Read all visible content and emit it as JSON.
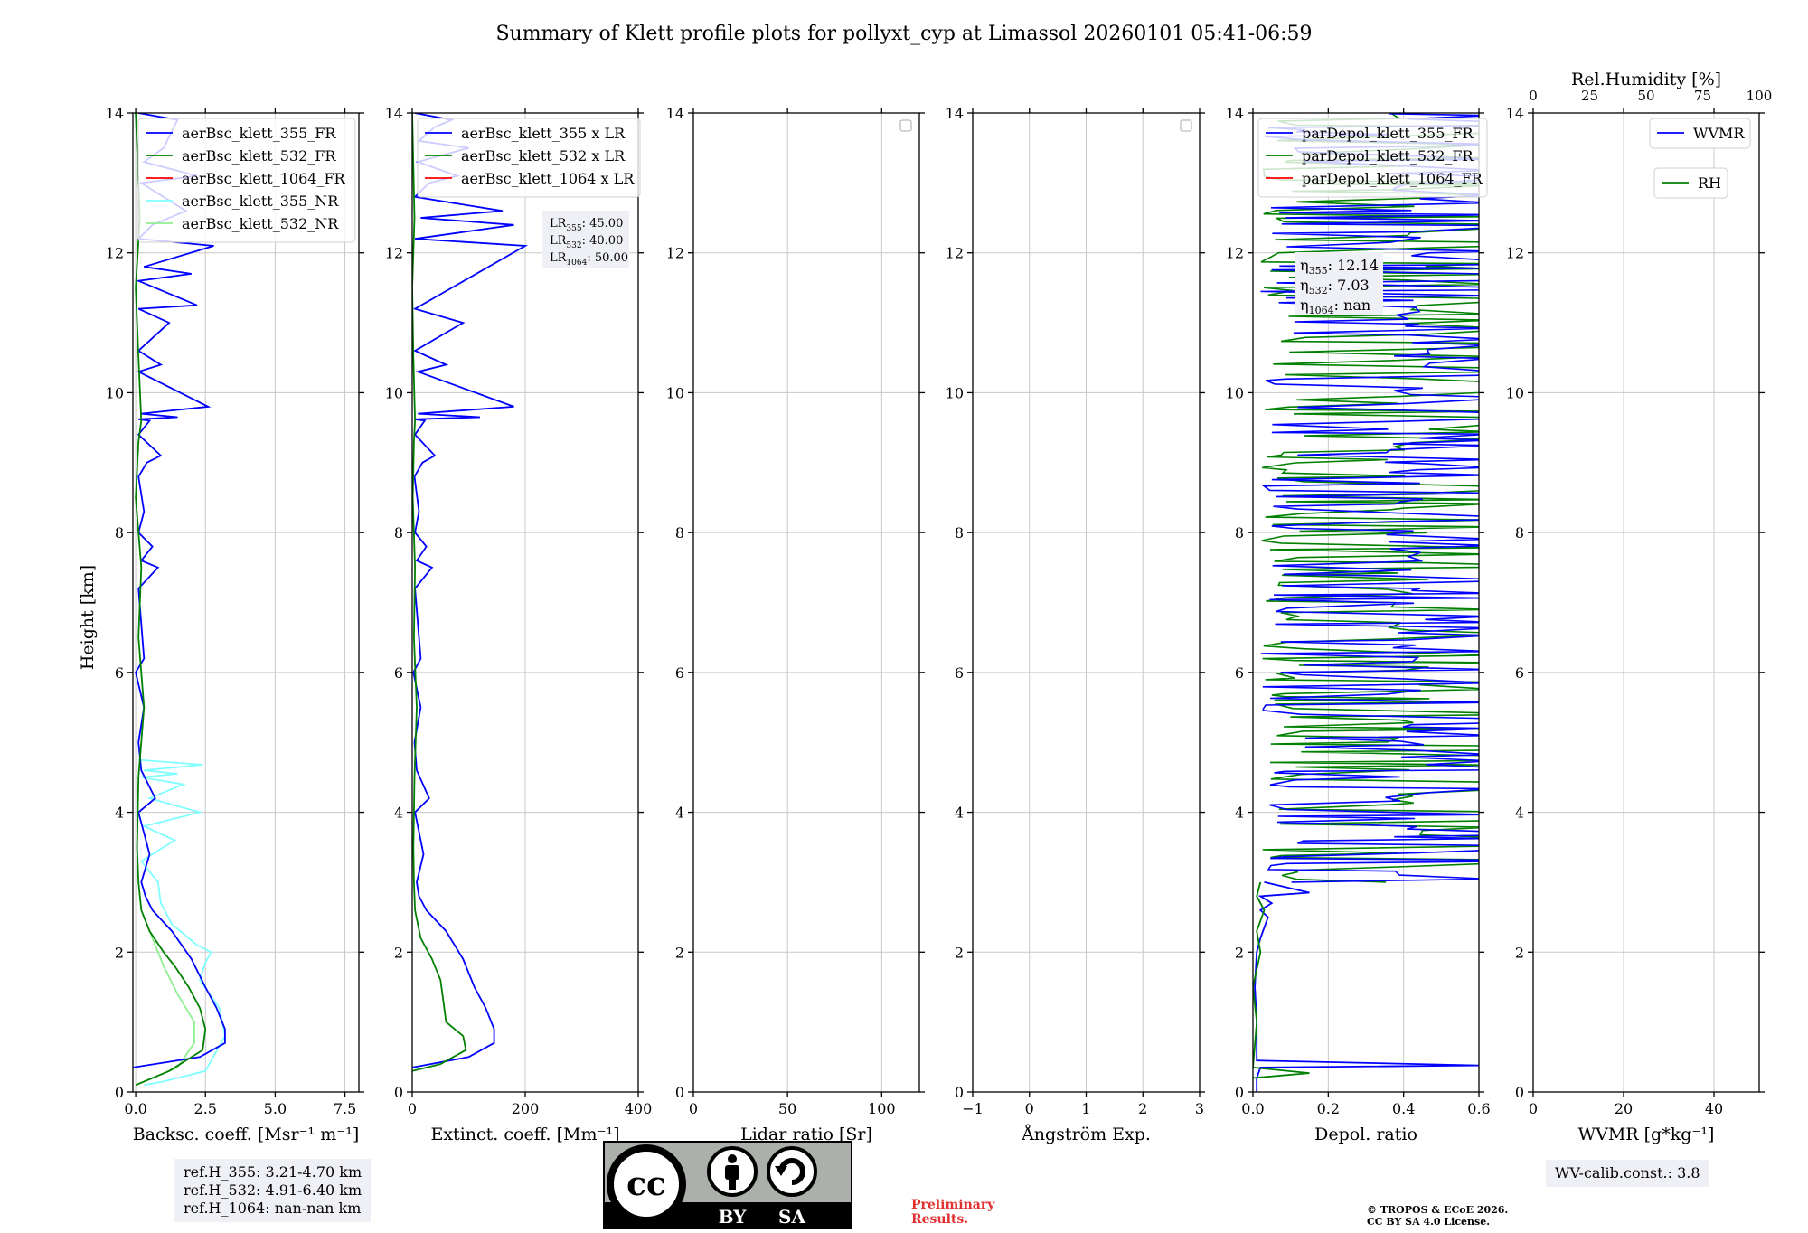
{
  "title": "Summary of Klett profile plots for pollyxt_cyp at Limassol 20260101 05:41-06:59",
  "colors": {
    "c355": "#0000ff",
    "c532": "#008000",
    "c1064": "#ff0000",
    "c355nr": "#80ffff",
    "c532nr": "#90ee90",
    "grid": "#c8c8c8",
    "legendbg": "#ffffff"
  },
  "ylabel": "Height [km]",
  "yticks": [
    "0",
    "2",
    "4",
    "6",
    "8",
    "10",
    "12",
    "14"
  ],
  "chart_data": [
    {
      "type": "line",
      "id": "backscatter",
      "xlabel": "Backsc. coeff. [Msr⁻¹ m⁻¹]",
      "xlim": [
        -0.1,
        8.0
      ],
      "ylim": [
        0,
        14
      ],
      "xticks": [
        {
          "v": 0,
          "label": "0.0"
        },
        {
          "v": 2.5,
          "label": "2.5"
        },
        {
          "v": 5.0,
          "label": "5.0"
        },
        {
          "v": 7.5,
          "label": "7.5"
        }
      ],
      "legend": [
        "aerBsc_klett_355_FR",
        "aerBsc_klett_532_FR",
        "aerBsc_klett_1064_FR",
        "aerBsc_klett_355_NR",
        "aerBsc_klett_532_NR"
      ],
      "series": [
        {
          "name": "aerBsc_klett_355_NR",
          "color": "c355nr",
          "x": [
            0.3,
            1.0,
            2.5,
            3.2,
            3.0,
            2.3,
            2.5,
            2.7,
            2.2,
            1.3,
            0.9,
            0.8,
            0.2,
            1.4,
            0.3,
            2.3,
            0.5,
            1.7,
            0.2,
            1.5,
            0.3,
            2.4,
            0.1
          ],
          "y": [
            0.1,
            0.15,
            0.3,
            0.8,
            1.2,
            1.6,
            1.85,
            2.0,
            2.1,
            2.4,
            2.7,
            3.0,
            3.3,
            3.6,
            3.8,
            4.0,
            4.2,
            4.4,
            4.5,
            4.55,
            4.6,
            4.68,
            4.75
          ]
        },
        {
          "name": "aerBsc_klett_532_NR",
          "color": "c532nr",
          "x": [
            0.0,
            1.5,
            2.1,
            2.1,
            1.5,
            1.0,
            0.6,
            0.3
          ],
          "y": [
            0.1,
            0.35,
            0.7,
            1.0,
            1.4,
            1.8,
            2.2,
            2.5
          ]
        },
        {
          "name": "aerBsc_klett_355_FR",
          "color": "c355",
          "x": [
            -0.1,
            2.3,
            3.2,
            3.2,
            2.9,
            2.5,
            2.0,
            1.3,
            0.6,
            0.35,
            0.2,
            0.5,
            0.1,
            0.7,
            0.2,
            0.1,
            0.3,
            0.0,
            0.3,
            0.1,
            0.8,
            0.2,
            0.6,
            0.1,
            0.3,
            0.1,
            0.4,
            0.9,
            0.1,
            0.5,
            0.1,
            1.5,
            0.2,
            2.6,
            0.1,
            0.9,
            0.1,
            1.2,
            0.1,
            2.2,
            0.1,
            2.0,
            0.3,
            2.8,
            0.1,
            0.6,
            1.8,
            0.2,
            2.2,
            0.3,
            1.0,
            1.5,
            0.1
          ],
          "y": [
            0.35,
            0.5,
            0.7,
            0.9,
            1.2,
            1.5,
            1.9,
            2.3,
            2.6,
            2.8,
            3.0,
            3.4,
            4.0,
            4.2,
            4.6,
            5.0,
            5.5,
            6.0,
            6.2,
            7.2,
            7.5,
            7.6,
            7.8,
            8.0,
            8.3,
            8.8,
            9.0,
            9.1,
            9.4,
            9.6,
            9.62,
            9.65,
            9.7,
            9.8,
            10.3,
            10.4,
            10.6,
            11.0,
            11.2,
            11.25,
            11.6,
            11.7,
            11.8,
            12.1,
            12.2,
            12.4,
            12.6,
            13.0,
            13.1,
            13.3,
            13.5,
            13.9,
            14.0
          ]
        },
        {
          "name": "aerBsc_klett_532_FR",
          "color": "c532",
          "x": [
            0.0,
            1.2,
            2.4,
            2.5,
            2.3,
            1.9,
            1.4,
            1.0,
            0.5,
            0.2,
            0.1,
            0.05,
            0.1,
            0.3,
            0.1,
            0.2,
            0.0,
            0.1,
            0.2,
            0.1,
            0.0,
            0.15,
            0.0
          ],
          "y": [
            0.1,
            0.3,
            0.6,
            0.9,
            1.2,
            1.5,
            1.8,
            2.0,
            2.3,
            2.6,
            3.0,
            3.5,
            4.5,
            5.5,
            6.5,
            7.5,
            8.5,
            9.3,
            9.6,
            10.5,
            11.5,
            12.5,
            14.0
          ]
        }
      ]
    },
    {
      "type": "line",
      "id": "extinction",
      "xlabel": "Extinct. coeff. [Mm⁻¹]",
      "xlim": [
        0,
        400
      ],
      "ylim": [
        0,
        14
      ],
      "xticks": [
        {
          "v": 0,
          "label": "0"
        },
        {
          "v": 200,
          "label": "200"
        },
        {
          "v": 400,
          "label": "400"
        }
      ],
      "legend": [
        "aerBsc_klett_355 x LR",
        "aerBsc_klett_532 x LR",
        "aerBsc_klett_1064 x LR"
      ],
      "annotations": [
        {
          "label": "LR",
          "sub": "355",
          "value": ": 45.00"
        },
        {
          "label": "LR",
          "sub": "532",
          "value": ": 40.00"
        },
        {
          "label": "LR",
          "sub": "1064",
          "value": ": 50.00"
        }
      ],
      "series": [
        {
          "name": "aerBsc_klett_355 x LR",
          "color": "c355",
          "x": [
            0,
            100,
            145,
            145,
            130,
            110,
            90,
            60,
            25,
            12,
            8,
            20,
            5,
            30,
            8,
            4,
            15,
            2,
            15,
            5,
            35,
            8,
            25,
            5,
            12,
            4,
            18,
            40,
            5,
            22,
            5,
            120,
            10,
            180,
            10,
            60,
            5,
            90,
            5,
            200,
            5,
            180,
            15,
            160,
            5,
            30,
            80,
            10,
            100,
            12,
            40,
            70,
            5
          ],
          "y": [
            0.35,
            0.5,
            0.7,
            0.9,
            1.2,
            1.5,
            1.9,
            2.3,
            2.6,
            2.8,
            3.0,
            3.4,
            4.0,
            4.2,
            4.6,
            5.0,
            5.5,
            6.0,
            6.2,
            7.2,
            7.5,
            7.6,
            7.8,
            8.0,
            8.3,
            8.8,
            9.0,
            9.1,
            9.4,
            9.6,
            9.62,
            9.65,
            9.7,
            9.8,
            10.3,
            10.4,
            10.6,
            11.0,
            11.2,
            12.1,
            12.2,
            12.4,
            12.5,
            12.6,
            12.8,
            13.0,
            13.1,
            13.3,
            13.5,
            13.6,
            13.8,
            13.9,
            14.0
          ]
        },
        {
          "name": "aerBsc_klett_532 x LR",
          "color": "c532",
          "x": [
            0,
            50,
            95,
            90,
            60,
            55,
            50,
            35,
            15,
            5,
            3,
            2,
            4,
            8,
            3,
            5,
            1,
            3,
            5,
            2,
            0,
            4,
            0
          ],
          "y": [
            0.3,
            0.4,
            0.6,
            0.8,
            1.0,
            1.3,
            1.6,
            1.9,
            2.2,
            2.6,
            3.0,
            3.5,
            4.5,
            5.5,
            6.5,
            7.5,
            8.5,
            9.3,
            9.6,
            10.5,
            11.5,
            12.5,
            14.0
          ]
        }
      ]
    },
    {
      "type": "line",
      "id": "lidar-ratio",
      "xlabel": "Lidar ratio [Sr]",
      "xlim": [
        0,
        120
      ],
      "ylim": [
        0,
        14
      ],
      "xticks": [
        {
          "v": 0,
          "label": "0"
        },
        {
          "v": 50,
          "label": "50"
        },
        {
          "v": 100,
          "label": "100"
        }
      ],
      "series": []
    },
    {
      "type": "line",
      "id": "angstrom",
      "xlabel": "Ångström Exp.",
      "xlim": [
        -1,
        3
      ],
      "ylim": [
        0,
        14
      ],
      "xticks": [
        {
          "v": -1,
          "label": "−1"
        },
        {
          "v": 0,
          "label": "0"
        },
        {
          "v": 1,
          "label": "1"
        },
        {
          "v": 2,
          "label": "2"
        },
        {
          "v": 3,
          "label": "3"
        }
      ],
      "series": []
    },
    {
      "type": "line",
      "id": "depol",
      "xlabel": "Depol. ratio",
      "xlim": [
        0,
        0.6
      ],
      "ylim": [
        0,
        14
      ],
      "xticks": [
        {
          "v": 0,
          "label": "0.0"
        },
        {
          "v": 0.2,
          "label": "0.2"
        },
        {
          "v": 0.4,
          "label": "0.4"
        },
        {
          "v": 0.6,
          "label": "0.6"
        }
      ],
      "legend": [
        "parDepol_klett_355_FR",
        "parDepol_klett_532_FR",
        "parDepol_klett_1064_FR"
      ],
      "annotations": [
        {
          "label": "η",
          "sub": "355",
          "value": ": 12.14"
        },
        {
          "label": "η",
          "sub": "532",
          "value": ": 7.03"
        },
        {
          "label": "η",
          "sub": "1064",
          "value": ": nan"
        }
      ],
      "noise_from_km": 3.0,
      "series": [
        {
          "name": "parDepol_klett_355_FR",
          "color": "c355",
          "x": [
            0.01,
            0.01,
            0.02,
            0.6,
            0.01,
            0.01,
            0.005,
            0.01,
            0.02,
            0.04,
            0.02,
            0.05,
            0.02,
            0.15,
            0.03
          ],
          "y": [
            0.0,
            0.2,
            0.35,
            0.38,
            0.45,
            1.0,
            1.5,
            2.0,
            2.2,
            2.5,
            2.6,
            2.7,
            2.8,
            2.85,
            3.0
          ]
        },
        {
          "name": "parDepol_klett_532_FR",
          "color": "c532",
          "x": [
            0.0,
            0.15,
            0.0,
            0.01,
            0.0,
            0.02,
            0.01,
            0.03,
            0.01,
            0.02
          ],
          "y": [
            0.2,
            0.27,
            0.35,
            1.0,
            1.5,
            2.0,
            2.3,
            2.6,
            2.8,
            3.0
          ]
        }
      ]
    },
    {
      "type": "line",
      "id": "wvmr",
      "xlabel": "WVMR [g*kg⁻¹]",
      "xlim": [
        0,
        50
      ],
      "ylim": [
        0,
        14
      ],
      "xticks": [
        {
          "v": 0,
          "label": "0"
        },
        {
          "v": 20,
          "label": "20"
        },
        {
          "v": 40,
          "label": "40"
        }
      ],
      "top_axis_label": "Rel.Humidity [%]",
      "top_xlim": [
        0,
        100
      ],
      "top_xticks": [
        {
          "v": 0,
          "label": "0"
        },
        {
          "v": 25,
          "label": "25"
        },
        {
          "v": 50,
          "label": "50"
        },
        {
          "v": 75,
          "label": "75"
        },
        {
          "v": 100,
          "label": "100"
        }
      ],
      "legend": [
        "WVMR",
        "RH"
      ],
      "series": []
    }
  ],
  "notes": {
    "refh": [
      "ref.H_355: 3.21-4.70 km",
      "ref.H_532: 4.91-6.40 km",
      "ref.H_1064: nan-nan km"
    ],
    "wvcalib": "WV-calib.const.: 3.8",
    "preliminary": [
      "Preliminary",
      "Results."
    ],
    "copyright": [
      "© TROPOS & ECoE 2026.",
      "CC BY SA 4.0 License."
    ],
    "cc_badge": {
      "cc": "cc",
      "by": "BY",
      "sa": "SA"
    }
  }
}
